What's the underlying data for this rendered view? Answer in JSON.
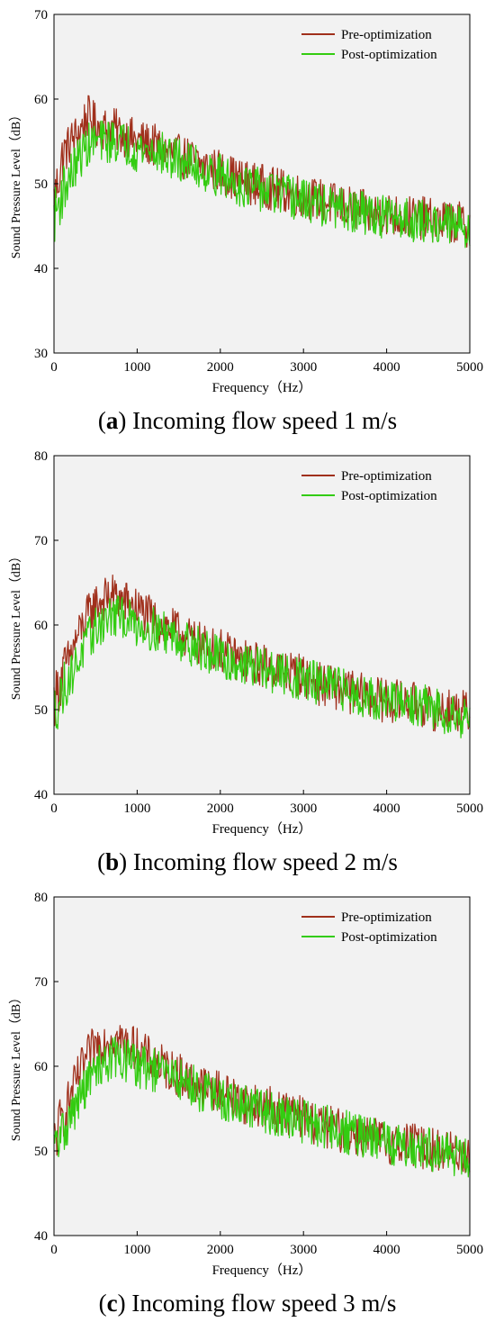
{
  "colors": {
    "pre": "#a0301c",
    "post": "#33cc11",
    "plot_bg": "#f2f2f2"
  },
  "chart_data": [
    {
      "type": "line",
      "caption_tag": "a",
      "caption_text": "Incoming flow speed 1 m/s",
      "xlabel": "Frequency（Hz）",
      "ylabel": "Sound Pressure Level（dB）",
      "xlim": [
        0,
        5000
      ],
      "ylim": [
        30,
        70
      ],
      "xticks": [
        0,
        1000,
        2000,
        3000,
        4000,
        5000
      ],
      "yticks": [
        30,
        40,
        50,
        60,
        70
      ],
      "legend_position": "top-right",
      "grid": false,
      "x": [
        0,
        100,
        200,
        300,
        400,
        500,
        600,
        700,
        800,
        900,
        1000,
        1200,
        1400,
        1600,
        1800,
        2000,
        2200,
        2400,
        2600,
        2800,
        3000,
        3200,
        3400,
        3600,
        3800,
        4000,
        4200,
        4400,
        4600,
        4800,
        5000
      ],
      "series": [
        {
          "name": "Pre-optimization",
          "values": [
            48,
            53,
            55,
            56,
            58,
            57,
            56.5,
            56.5,
            56,
            55.5,
            55,
            54.5,
            53.5,
            53,
            52,
            51.5,
            50.5,
            50,
            49.5,
            49,
            48.5,
            48,
            47.5,
            47,
            46.5,
            46.5,
            46,
            46,
            45.5,
            45.5,
            45
          ]
        },
        {
          "name": "Post-optimization",
          "values": [
            46,
            49,
            51,
            53,
            54.5,
            55,
            55,
            55,
            55,
            54.5,
            54,
            54,
            53,
            52.5,
            51.5,
            51,
            50,
            49.5,
            49,
            48.5,
            48,
            47.5,
            47,
            46.5,
            46.5,
            46,
            46,
            45.5,
            45.5,
            45,
            45
          ]
        }
      ]
    },
    {
      "type": "line",
      "caption_tag": "b",
      "caption_text": "Incoming flow speed 2 m/s",
      "xlabel": "Frequency（Hz）",
      "ylabel": "Sound Pressure Level（dB）",
      "xlim": [
        0,
        5000
      ],
      "ylim": [
        40,
        80
      ],
      "xticks": [
        0,
        1000,
        2000,
        3000,
        4000,
        5000
      ],
      "yticks": [
        40,
        50,
        60,
        70,
        80
      ],
      "legend_position": "top-right",
      "grid": false,
      "x": [
        0,
        100,
        200,
        300,
        400,
        500,
        600,
        700,
        800,
        900,
        1000,
        1200,
        1400,
        1600,
        1800,
        2000,
        2200,
        2400,
        2600,
        2800,
        3000,
        3200,
        3400,
        3600,
        3800,
        4000,
        4200,
        4400,
        4600,
        4800,
        5000
      ],
      "series": [
        {
          "name": "Pre-optimization",
          "values": [
            51,
            54,
            56.5,
            59,
            61,
            62.5,
            63,
            63.5,
            63,
            62.5,
            62,
            60.5,
            59.5,
            58.5,
            57.5,
            57,
            56,
            55.5,
            55,
            54.5,
            54,
            53,
            52.5,
            52,
            51.5,
            51,
            51,
            50.5,
            50,
            50,
            49.5
          ]
        },
        {
          "name": "Post-optimization",
          "values": [
            50,
            52,
            54,
            56,
            58,
            59.5,
            60.5,
            61,
            61,
            60.5,
            60,
            59.5,
            59,
            58,
            57,
            56,
            55.5,
            55,
            54.5,
            54,
            53.5,
            53,
            52.5,
            52,
            51.5,
            51,
            50.5,
            50.5,
            50,
            49.5,
            49
          ]
        }
      ]
    },
    {
      "type": "line",
      "caption_tag": "c",
      "caption_text": "Incoming flow speed 3 m/s",
      "xlabel": "Frequency（Hz）",
      "ylabel": "Sound Pressure Level（dB）",
      "xlim": [
        0,
        5000
      ],
      "ylim": [
        40,
        80
      ],
      "xticks": [
        0,
        1000,
        2000,
        3000,
        4000,
        5000
      ],
      "yticks": [
        40,
        50,
        60,
        70,
        80
      ],
      "legend_position": "top-right",
      "grid": false,
      "x": [
        0,
        100,
        200,
        300,
        400,
        500,
        600,
        700,
        800,
        900,
        1000,
        1200,
        1400,
        1600,
        1800,
        2000,
        2200,
        2400,
        2600,
        2800,
        3000,
        3200,
        3400,
        3600,
        3800,
        4000,
        4200,
        4400,
        4600,
        4800,
        5000
      ],
      "series": [
        {
          "name": "Pre-optimization",
          "values": [
            51,
            54,
            56.5,
            59,
            61,
            62.5,
            63,
            63.5,
            63,
            62.5,
            62,
            60.5,
            59.5,
            58.5,
            57.5,
            57,
            56,
            55.5,
            55,
            54.5,
            54,
            53,
            52.5,
            52,
            51.5,
            51,
            51,
            50.5,
            50,
            50,
            49.5
          ]
        },
        {
          "name": "Post-optimization",
          "values": [
            50,
            52,
            54,
            56,
            58,
            59.5,
            60.5,
            61,
            61,
            60.5,
            60,
            59.5,
            59,
            58,
            57,
            56,
            55.5,
            55,
            54.5,
            54,
            53.5,
            53,
            52.5,
            52,
            51.5,
            51,
            50.5,
            50.5,
            50,
            49.5,
            49
          ]
        }
      ]
    }
  ]
}
